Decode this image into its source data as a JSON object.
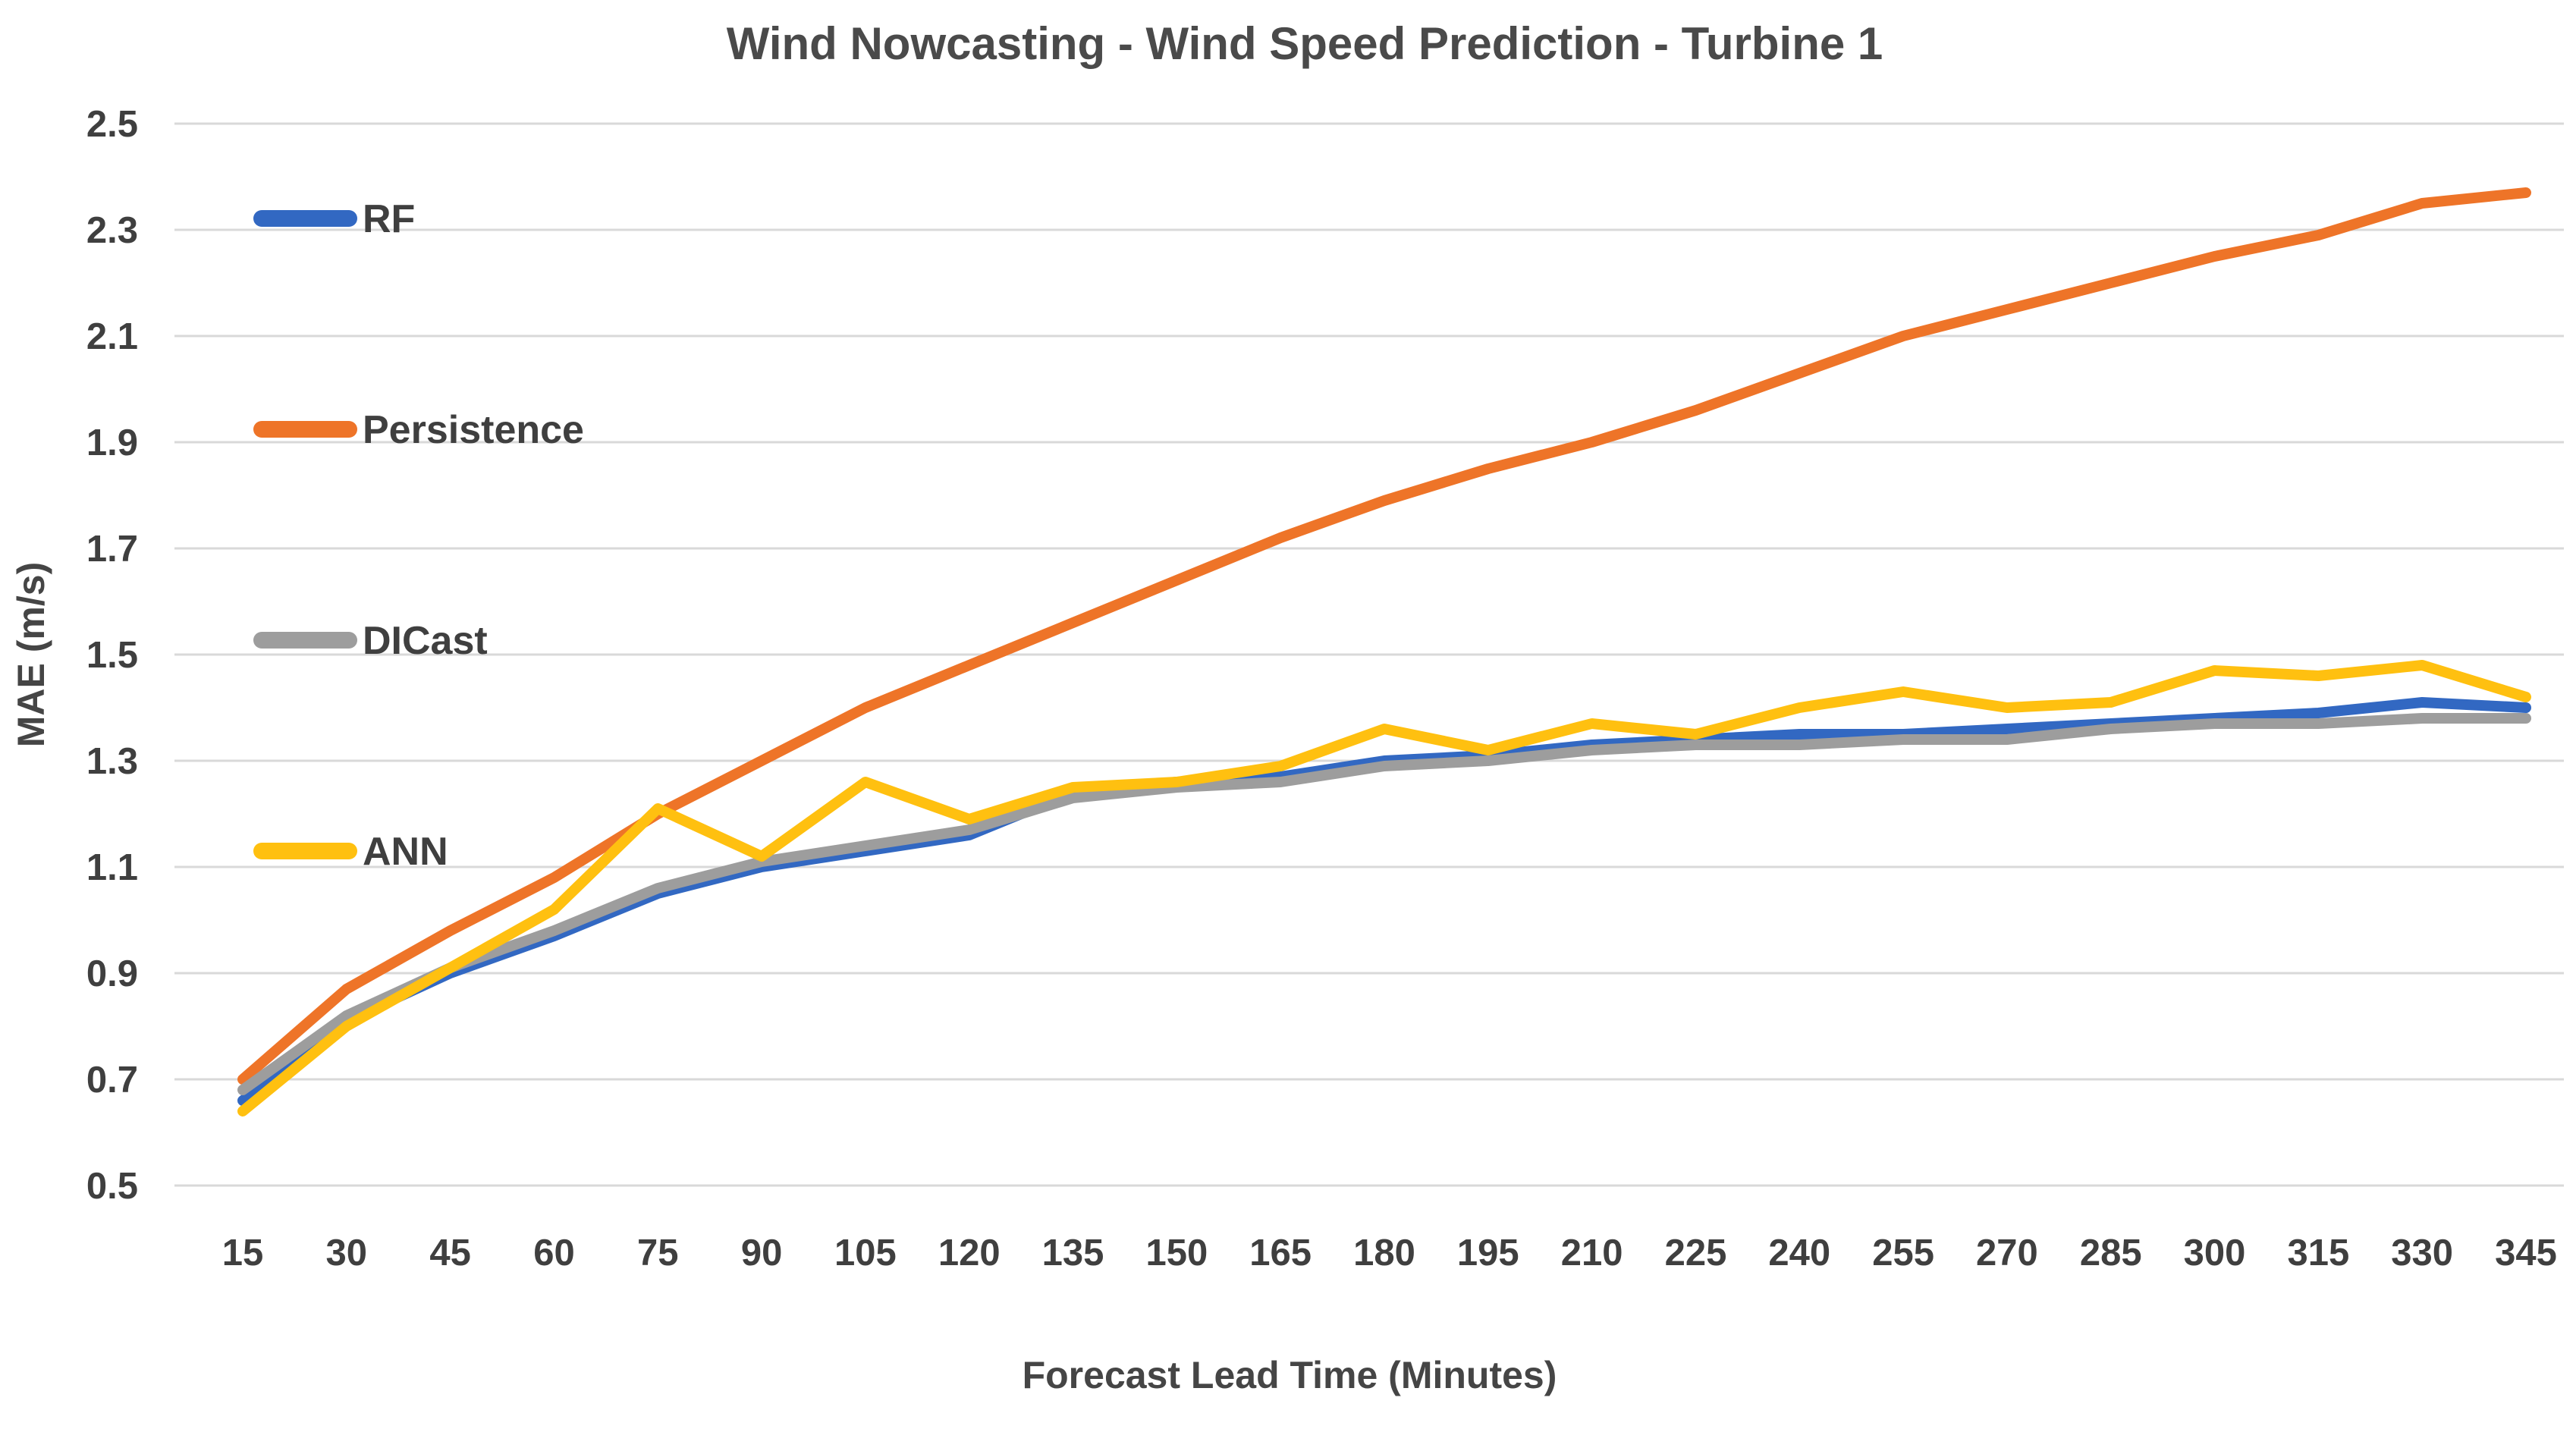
{
  "chart_data": {
    "type": "line",
    "title": "Wind Nowcasting - Wind Speed Prediction - Turbine 1",
    "xlabel": "Forecast Lead Time (Minutes)",
    "ylabel": "MAE (m/s)",
    "x_categories": [
      15,
      30,
      45,
      60,
      75,
      90,
      105,
      120,
      135,
      150,
      165,
      180,
      195,
      210,
      225,
      240,
      255,
      270,
      285,
      300,
      315,
      330,
      345
    ],
    "ylim": [
      0.5,
      2.5
    ],
    "ytick_labels": [
      "0.5",
      "0.7",
      "0.9",
      "1.1",
      "1.3",
      "1.5",
      "1.7",
      "1.9",
      "2.1",
      "2.3",
      "2.5"
    ],
    "grid": "horizontal",
    "grid_color": "#d9d9d9",
    "legend_position": "inside-top-left",
    "series": [
      {
        "name": "RF",
        "color": "#3268c2",
        "values": [
          0.66,
          0.81,
          0.9,
          0.97,
          1.05,
          1.1,
          1.13,
          1.16,
          1.24,
          1.26,
          1.27,
          1.3,
          1.31,
          1.33,
          1.34,
          1.35,
          1.35,
          1.36,
          1.37,
          1.38,
          1.39,
          1.41,
          1.4
        ]
      },
      {
        "name": "Persistence",
        "color": "#ee7428",
        "values": [
          0.7,
          0.87,
          0.98,
          1.08,
          1.2,
          1.3,
          1.4,
          1.48,
          1.56,
          1.64,
          1.72,
          1.79,
          1.85,
          1.9,
          1.96,
          2.03,
          2.1,
          2.15,
          2.2,
          2.25,
          2.29,
          2.35,
          2.37
        ]
      },
      {
        "name": "DICast",
        "color": "#9d9d9d",
        "values": [
          0.68,
          0.82,
          0.91,
          0.98,
          1.06,
          1.11,
          1.14,
          1.17,
          1.23,
          1.25,
          1.26,
          1.29,
          1.3,
          1.32,
          1.33,
          1.33,
          1.34,
          1.34,
          1.36,
          1.37,
          1.37,
          1.38,
          1.38
        ]
      },
      {
        "name": "ANN",
        "color": "#ffc010",
        "values": [
          0.64,
          0.8,
          0.91,
          1.02,
          1.21,
          1.12,
          1.26,
          1.19,
          1.25,
          1.26,
          1.29,
          1.36,
          1.32,
          1.37,
          1.35,
          1.4,
          1.43,
          1.4,
          1.41,
          1.47,
          1.46,
          1.48,
          1.42
        ]
      }
    ]
  }
}
